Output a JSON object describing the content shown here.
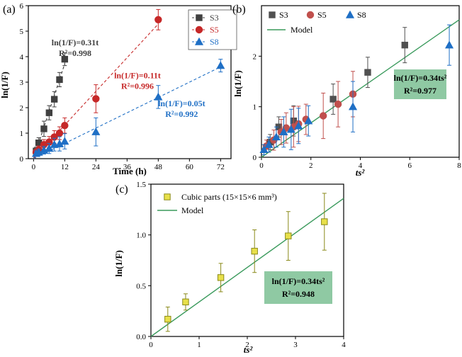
{
  "chart_data": [
    {
      "panel_label": "(a)",
      "type": "scatter",
      "xlabel": "Time (h)",
      "ylabel": "ln(1/F)",
      "xlim": [
        -2,
        76
      ],
      "ylim": [
        0,
        6
      ],
      "xticks": [
        0,
        12,
        24,
        36,
        48,
        60,
        72
      ],
      "yticks": [
        0,
        1,
        2,
        3,
        4,
        5,
        6
      ],
      "legend_position": "top-right",
      "series": [
        {
          "name": "S3",
          "color": "#404040",
          "marker": "square",
          "x": [
            1,
            2,
            4,
            6,
            8,
            10,
            12
          ],
          "y": [
            0.3,
            0.62,
            1.17,
            1.8,
            2.33,
            3.1,
            3.9
          ],
          "err": [
            0.15,
            0.2,
            0.3,
            0.28,
            0.3,
            0.28,
            0.25
          ],
          "fit_slope": 0.31
        },
        {
          "name": "S5",
          "color": "#c62828",
          "marker": "circle",
          "x": [
            1,
            2,
            4,
            6,
            8,
            10,
            12,
            24,
            48
          ],
          "y": [
            0.25,
            0.35,
            0.55,
            0.65,
            0.85,
            1.0,
            1.3,
            2.35,
            5.45
          ],
          "err": [
            0.12,
            0.15,
            0.2,
            0.22,
            0.25,
            0.25,
            0.3,
            0.55,
            0.4
          ],
          "fit_slope": 0.11
        },
        {
          "name": "S8",
          "color": "#1f6fc5",
          "marker": "triangle",
          "x": [
            1,
            2,
            4,
            6,
            8,
            10,
            12,
            24,
            48,
            72
          ],
          "y": [
            0.2,
            0.25,
            0.33,
            0.4,
            0.55,
            0.58,
            0.68,
            1.05,
            2.42,
            3.65
          ],
          "err": [
            0.1,
            0.12,
            0.15,
            0.2,
            0.25,
            0.28,
            0.3,
            0.55,
            0.45,
            0.25
          ],
          "fit_slope": 0.05
        }
      ],
      "annotations": [
        {
          "line1": "ln(1/F)=0.31t",
          "line2": "R²=0.998",
          "color": "#404040",
          "x": 16,
          "y": 4.45
        },
        {
          "line1": "ln(1/F)=0.11t",
          "line2": "R²=0.996",
          "color": "#c62828",
          "x": 40,
          "y": 3.15
        },
        {
          "line1": "ln(1/F)=0.05t",
          "line2": "R²=0.992",
          "color": "#1f6fc5",
          "x": 57,
          "y": 2.05
        }
      ]
    },
    {
      "panel_label": "(b)",
      "type": "scatter",
      "xlabel": "ts²",
      "ylabel": "ln(1/F)",
      "xlim": [
        0,
        8
      ],
      "ylim": [
        0,
        3
      ],
      "xticks": [
        0,
        2,
        4,
        6,
        8
      ],
      "yticks": [
        0,
        1,
        2
      ],
      "legend_position": "top-left",
      "series": [
        {
          "name": "S3",
          "color": "#505050",
          "marker": "square",
          "x": [
            0.35,
            0.7,
            1.3,
            2.9,
            4.3,
            5.8
          ],
          "y": [
            0.3,
            0.6,
            0.72,
            1.15,
            1.68,
            2.22
          ],
          "err": [
            0.15,
            0.2,
            0.3,
            0.3,
            0.3,
            0.35
          ]
        },
        {
          "name": "S5",
          "color": "#c0504d",
          "marker": "circle",
          "x": [
            0.2,
            0.5,
            0.8,
            1.0,
            1.3,
            1.5,
            1.8,
            2.5,
            3.1,
            3.7
          ],
          "y": [
            0.22,
            0.34,
            0.5,
            0.58,
            0.6,
            0.66,
            0.75,
            0.82,
            1.05,
            1.25
          ],
          "err": [
            0.12,
            0.2,
            0.25,
            0.3,
            0.4,
            0.35,
            0.3,
            0.45,
            0.45,
            0.45
          ]
        },
        {
          "name": "S8",
          "color": "#1f6fc5",
          "marker": "triangle",
          "x": [
            0.1,
            0.3,
            0.6,
            0.9,
            1.2,
            1.5,
            1.9,
            3.7,
            7.6
          ],
          "y": [
            0.15,
            0.25,
            0.4,
            0.5,
            0.55,
            0.62,
            0.72,
            1.0,
            2.22
          ],
          "err": [
            0.1,
            0.15,
            0.2,
            0.3,
            0.4,
            0.35,
            0.3,
            0.5,
            0.4
          ]
        },
        {
          "name": "Model",
          "color": "#3a9a5c",
          "type": "line",
          "slope": 0.34
        }
      ],
      "annotation": {
        "line1": "ln(1/F)=0.34ts²",
        "line2": "R²=0.977",
        "box_color": "#8fc9a3"
      }
    },
    {
      "panel_label": "(c)",
      "type": "scatter",
      "xlabel": "ts²",
      "ylabel": "ln(1/F)",
      "xlim": [
        0,
        4
      ],
      "ylim": [
        0,
        1.5
      ],
      "xticks": [
        0,
        1,
        2,
        3,
        4
      ],
      "yticks": [
        0.0,
        0.5,
        1.0,
        1.5
      ],
      "legend_position": "top-left",
      "series": [
        {
          "name": "Cubic parts (15×15×6 mm³)",
          "color": "#e8e04a",
          "edge": "#8a8a1a",
          "marker": "square",
          "x": [
            0.35,
            0.72,
            1.45,
            2.15,
            2.85,
            3.6
          ],
          "y": [
            0.17,
            0.34,
            0.58,
            0.84,
            0.99,
            1.13
          ],
          "err": [
            0.12,
            0.08,
            0.14,
            0.21,
            0.24,
            0.28
          ]
        },
        {
          "name": "Model",
          "color": "#3a9a5c",
          "type": "line",
          "slope": 0.34
        }
      ],
      "annotation": {
        "line1": "ln(1/F)=0.34ts²",
        "line2": "R²=0.948",
        "box_color": "#8fc9a3"
      }
    }
  ]
}
